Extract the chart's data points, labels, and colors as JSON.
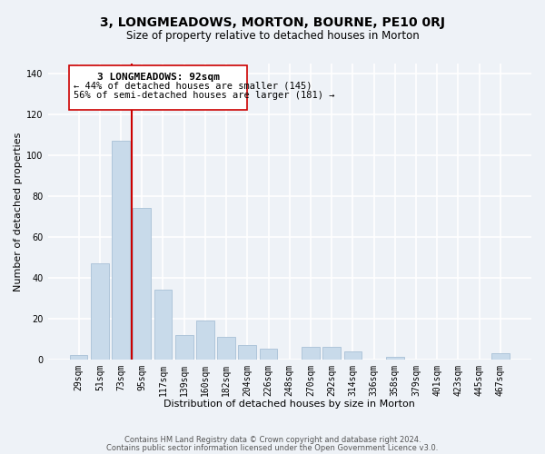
{
  "title": "3, LONGMEADOWS, MORTON, BOURNE, PE10 0RJ",
  "subtitle": "Size of property relative to detached houses in Morton",
  "xlabel": "Distribution of detached houses by size in Morton",
  "ylabel": "Number of detached properties",
  "bar_color": "#c8daea",
  "bar_edge_color": "#a8c0d6",
  "categories": [
    "29sqm",
    "51sqm",
    "73sqm",
    "95sqm",
    "117sqm",
    "139sqm",
    "160sqm",
    "182sqm",
    "204sqm",
    "226sqm",
    "248sqm",
    "270sqm",
    "292sqm",
    "314sqm",
    "336sqm",
    "358sqm",
    "379sqm",
    "401sqm",
    "423sqm",
    "445sqm",
    "467sqm"
  ],
  "values": [
    2,
    47,
    107,
    74,
    34,
    12,
    19,
    11,
    7,
    5,
    0,
    6,
    6,
    4,
    0,
    1,
    0,
    0,
    0,
    0,
    3
  ],
  "ylim": [
    0,
    145
  ],
  "yticks": [
    0,
    20,
    40,
    60,
    80,
    100,
    120,
    140
  ],
  "vline_color": "#cc0000",
  "annotation_title": "3 LONGMEADOWS: 92sqm",
  "annotation_line1": "← 44% of detached houses are smaller (145)",
  "annotation_line2": "56% of semi-detached houses are larger (181) →",
  "annotation_box_color": "#ffffff",
  "annotation_box_edge": "#cc0000",
  "footer1": "Contains HM Land Registry data © Crown copyright and database right 2024.",
  "footer2": "Contains public sector information licensed under the Open Government Licence v3.0.",
  "bg_color": "#eef2f7",
  "plot_bg_color": "#eef2f7",
  "grid_color": "#ffffff",
  "title_fontsize": 10,
  "subtitle_fontsize": 8.5,
  "axis_label_fontsize": 8,
  "tick_fontsize": 7,
  "annotation_title_fontsize": 8,
  "annotation_line_fontsize": 7.5,
  "footer_fontsize": 6
}
